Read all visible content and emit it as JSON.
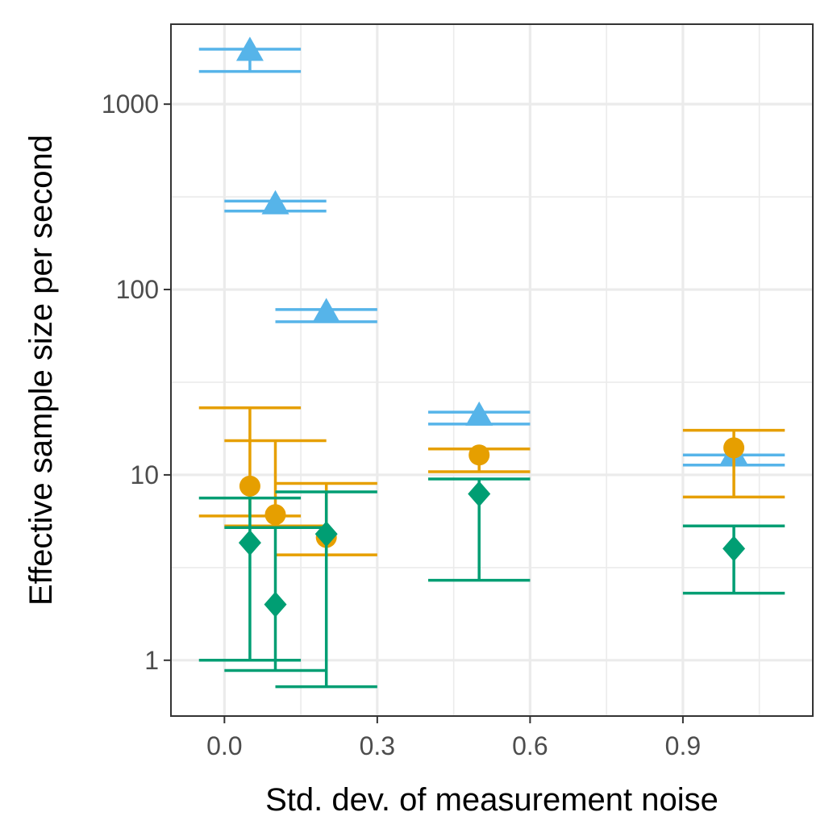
{
  "chart_data": {
    "type": "scatter",
    "title": "",
    "xlabel": "Std. dev. of measurement noise",
    "ylabel": "Effective sample size per second",
    "x_scale": "linear",
    "y_scale": "log10",
    "xlim": [
      -0.105,
      1.155
    ],
    "ylim": [
      0.5,
      2700
    ],
    "x_ticks": [
      0.0,
      0.3,
      0.6,
      0.9
    ],
    "x_tick_labels": [
      "0.0",
      "0.3",
      "0.6",
      "0.9"
    ],
    "x_minor_ticks": [
      0.15,
      0.45,
      0.75,
      1.05
    ],
    "y_ticks": [
      1,
      10,
      100,
      1000
    ],
    "y_tick_labels": [
      "1",
      "10",
      "100",
      "1000"
    ],
    "y_minor_ticks": [
      3.16,
      31.6,
      316
    ],
    "grid": true,
    "legend": "none",
    "series": [
      {
        "name": "triangle-series",
        "color": "#56B4E9",
        "marker": "triangle",
        "points": [
          {
            "x": 0.05,
            "y": 1950,
            "lo": 1500,
            "hi": 1980
          },
          {
            "x": 0.1,
            "y": 290,
            "lo": 265,
            "hi": 300
          },
          {
            "x": 0.2,
            "y": 76,
            "lo": 67,
            "hi": 78
          },
          {
            "x": 0.5,
            "y": 21,
            "lo": 18.8,
            "hi": 21.8
          },
          {
            "x": 1.0,
            "y": 13.0,
            "lo": 11.3,
            "hi": 12.8
          }
        ]
      },
      {
        "name": "circle-series",
        "color": "#E69F00",
        "marker": "circle",
        "points": [
          {
            "x": 0.05,
            "y": 8.7,
            "lo": 6.0,
            "hi": 23
          },
          {
            "x": 0.1,
            "y": 6.1,
            "lo": 5.3,
            "hi": 15.3
          },
          {
            "x": 0.2,
            "y": 4.6,
            "lo": 3.7,
            "hi": 9.0
          },
          {
            "x": 0.5,
            "y": 12.8,
            "lo": 10.4,
            "hi": 13.8
          },
          {
            "x": 1.0,
            "y": 14.0,
            "lo": 7.6,
            "hi": 17.4
          }
        ]
      },
      {
        "name": "diamond-series",
        "color": "#009E73",
        "marker": "diamond",
        "points": [
          {
            "x": 0.05,
            "y": 4.3,
            "lo": 1.0,
            "hi": 7.5
          },
          {
            "x": 0.1,
            "y": 2.0,
            "lo": 0.88,
            "hi": 5.2
          },
          {
            "x": 0.2,
            "y": 4.8,
            "lo": 0.72,
            "hi": 8.1
          },
          {
            "x": 0.5,
            "y": 7.9,
            "lo": 2.7,
            "hi": 9.5
          },
          {
            "x": 1.0,
            "y": 4.0,
            "lo": 2.3,
            "hi": 5.3
          }
        ]
      }
    ]
  }
}
